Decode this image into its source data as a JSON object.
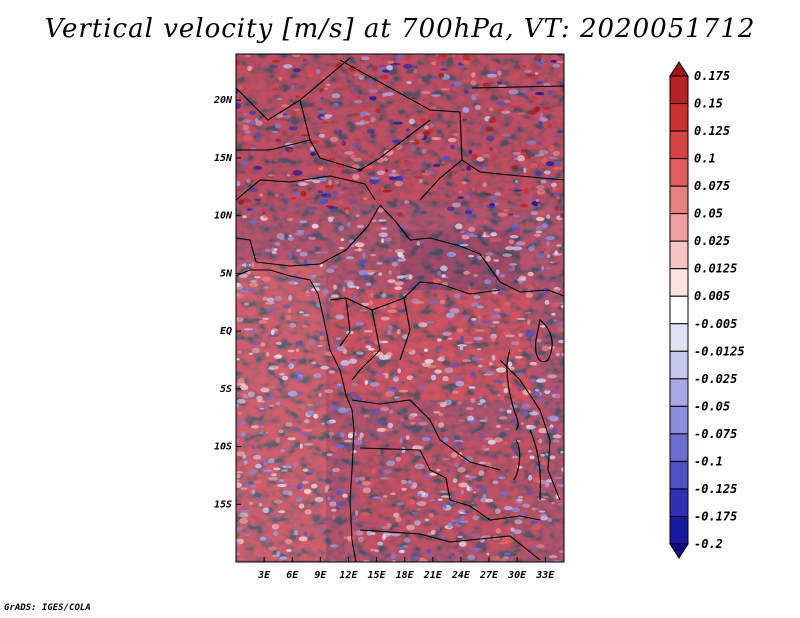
{
  "title": "Vertical velocity [m/s] at 700hPa, VT: 2020051712",
  "credit": "GrADS: IGES/COLA",
  "map": {
    "region": "Central Africa",
    "lat_labels": [
      "20N",
      "15N",
      "10N",
      "5N",
      "EQ",
      "5S",
      "10S",
      "15S"
    ],
    "lon_labels": [
      "3E",
      "6E",
      "9E",
      "12E",
      "15E",
      "18E",
      "21E",
      "24E",
      "27E",
      "30E",
      "33E"
    ],
    "lat_values": [
      20,
      15,
      10,
      5,
      0,
      -5,
      -10,
      -15
    ],
    "lon_values": [
      3,
      6,
      9,
      12,
      15,
      18,
      21,
      24,
      27,
      30,
      33
    ],
    "lat_range": [
      -20,
      24
    ],
    "lon_range": [
      0,
      35
    ]
  },
  "colorbar": {
    "labels": [
      "0.175",
      "0.15",
      "0.125",
      "0.1",
      "0.075",
      "0.05",
      "0.025",
      "0.0125",
      "0.005",
      "-0.005",
      "-0.0125",
      "-0.025",
      "-0.05",
      "-0.075",
      "-0.1",
      "-0.125",
      "-0.175",
      "-0.2"
    ],
    "colors": [
      "#a01818",
      "#b82222",
      "#cc3030",
      "#d84444",
      "#e06060",
      "#e88080",
      "#f0a0a0",
      "#f6c4c4",
      "#fce4e4",
      "#ffffff",
      "#e2e2f6",
      "#c8c8ee",
      "#a8a8e4",
      "#8c8cdc",
      "#6e6ed2",
      "#5050c6",
      "#3030b4",
      "#1818a0",
      "#0c0c8c"
    ]
  }
}
